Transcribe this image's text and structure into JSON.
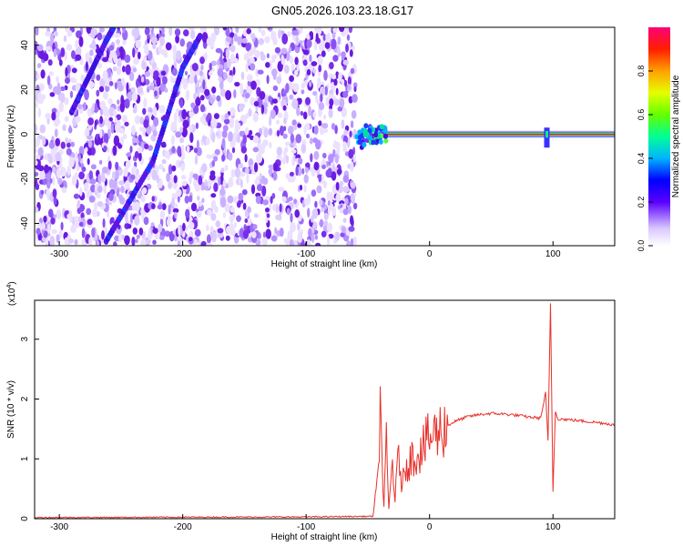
{
  "title": "GN05.2026.103.23.18.G17",
  "chart_data": [
    {
      "type": "heatmap",
      "title": "GN05.2026.103.23.18.G17",
      "xlabel": "Height of straight line (km)",
      "ylabel": "Frequency (Hz)",
      "xlim": [
        -320,
        150
      ],
      "ylim": [
        -50,
        48
      ],
      "xticks": [
        -300,
        -200,
        -100,
        0,
        100
      ],
      "yticks": [
        -40,
        -20,
        0,
        20,
        40
      ],
      "colorbar": {
        "label": "Normalized spectral amplitude",
        "range": [
          0,
          1
        ],
        "ticks": [
          0.0,
          0.2,
          0.4,
          0.6,
          0.8
        ],
        "tick_labels": [
          "0.0",
          "0.2",
          "0.4",
          "0.6",
          "0.8"
        ],
        "colormap": [
          "#f0e6ff",
          "#7a1fe6",
          "#0000ff",
          "#00c8ff",
          "#00ff64",
          "#c8ff00",
          "#ffaa00",
          "#ff0000",
          "#ff0064"
        ]
      },
      "features": {
        "noise_region_x": [
          -320,
          -60
        ],
        "carrier_start_x": -60,
        "carrier_frequency": 0,
        "streak_1": [
          [
            -262,
            -48
          ],
          [
            -224,
            -12
          ],
          [
            -200,
            30
          ],
          [
            -186,
            44
          ]
        ],
        "streak_2": [
          [
            -290,
            10
          ],
          [
            -262,
            42
          ],
          [
            -256,
            48
          ]
        ],
        "spike_x": 95
      }
    },
    {
      "type": "line",
      "xlabel": "Height of straight line (km)",
      "ylabel": "SNR (10 * v/v)",
      "multiplier": "(x10",
      "multiplier_exponent": "4",
      "multiplier_close": ")",
      "xlim": [
        -320,
        150
      ],
      "ylim": [
        0,
        3.65
      ],
      "xticks": [
        -300,
        -200,
        -100,
        0,
        100
      ],
      "yticks": [
        0,
        1,
        2,
        3
      ],
      "series": [
        {
          "color": "#e8302a",
          "x": [
            -320,
            -100,
            -46,
            -42,
            -40,
            -37,
            -35,
            -33,
            -30,
            -28,
            -25,
            -22,
            -20,
            -15,
            -10,
            -5,
            0,
            10,
            20,
            30,
            40,
            50,
            60,
            70,
            80,
            90,
            94,
            96,
            98,
            100,
            102,
            104,
            110,
            120,
            130,
            140,
            150
          ],
          "values": [
            0.02,
            0.03,
            0.04,
            0.6,
            1.9,
            0.2,
            1.2,
            0.15,
            1.0,
            0.3,
            1.1,
            0.5,
            0.9,
            1.0,
            1.1,
            1.2,
            1.35,
            1.5,
            1.62,
            1.7,
            1.74,
            1.76,
            1.75,
            1.73,
            1.7,
            1.68,
            2.1,
            1.3,
            3.6,
            0.45,
            1.8,
            1.67,
            1.66,
            1.64,
            1.62,
            1.6,
            1.57
          ]
        }
      ]
    }
  ]
}
